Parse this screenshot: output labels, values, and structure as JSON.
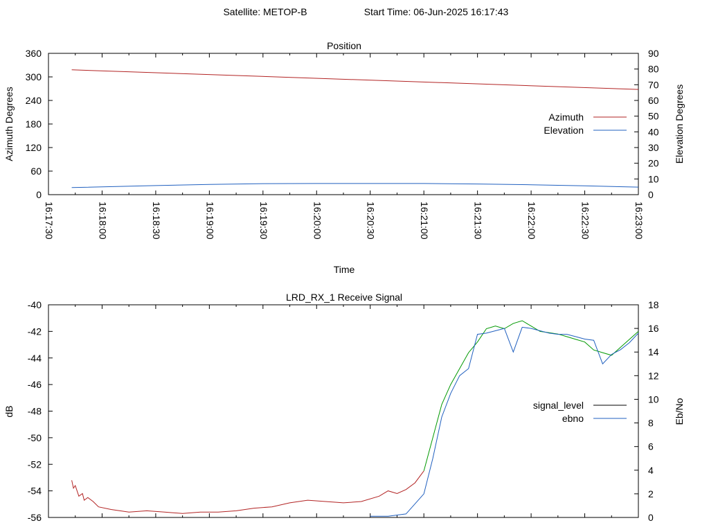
{
  "header": {
    "satellite": "Satellite: METOP-B",
    "start_time": "Start Time: 06-Jun-2025 16:17:43"
  },
  "chart_data": [
    {
      "type": "line",
      "title": "Position",
      "xlabel": "Time",
      "ylabel": "Azimuth Degrees",
      "y2label": "Elevation Degrees",
      "x_ticks": [
        "16:17:30",
        "16:18:00",
        "16:18:30",
        "16:19:00",
        "16:19:30",
        "16:20:00",
        "16:20:30",
        "16:21:00",
        "16:21:30",
        "16:22:00",
        "16:22:30",
        "16:23:00"
      ],
      "xlim": [
        "16:17:30",
        "16:23:00"
      ],
      "ylim": [
        0,
        360
      ],
      "y_ticks": [
        0,
        60,
        120,
        180,
        240,
        300,
        360
      ],
      "y2lim": [
        0,
        90
      ],
      "y2_ticks": [
        0,
        10,
        20,
        30,
        40,
        50,
        60,
        70,
        80,
        90
      ],
      "legend_position": "right",
      "series": [
        {
          "name": "Azimuth",
          "axis": "left",
          "color": "#b22222",
          "x": [
            "16:17:43",
            "16:23:00"
          ],
          "y": [
            318,
            268
          ]
        },
        {
          "name": "Elevation",
          "axis": "right",
          "color": "#1f5fbf",
          "x": [
            "16:17:43",
            "16:18:30",
            "16:19:00",
            "16:19:30",
            "16:20:00",
            "16:20:30",
            "16:21:00",
            "16:21:30",
            "16:22:00",
            "16:22:30",
            "16:23:00"
          ],
          "y": [
            4.5,
            5.8,
            6.5,
            7.0,
            7.1,
            7.1,
            7.1,
            6.8,
            6.3,
            5.6,
            4.8
          ]
        }
      ]
    },
    {
      "type": "line",
      "title": "LRD_RX_1 Receive Signal",
      "ylabel": "dB",
      "y2label": "Eb/No",
      "ylim": [
        -56,
        -40
      ],
      "y_ticks": [
        -56,
        -54,
        -52,
        -50,
        -48,
        -46,
        -44,
        -42,
        -40
      ],
      "y2lim": [
        0,
        18
      ],
      "y2_ticks": [
        0,
        2,
        4,
        6,
        8,
        10,
        12,
        14,
        16,
        18
      ],
      "legend_position": "right",
      "series": [
        {
          "name": "signal_level",
          "axis": "left",
          "color": "#000000",
          "segments": [
            {
              "color": "#b22222",
              "x": [
                "16:17:43",
                "16:17:44",
                "16:17:45",
                "16:17:47",
                "16:17:49",
                "16:17:50",
                "16:17:52",
                "16:17:55",
                "16:17:58",
                "16:18:05",
                "16:18:15",
                "16:18:25",
                "16:18:35",
                "16:18:45",
                "16:18:55",
                "16:19:05",
                "16:19:15",
                "16:19:25",
                "16:19:35",
                "16:19:45",
                "16:19:55",
                "16:20:05",
                "16:20:15",
                "16:20:25",
                "16:20:35",
                "16:20:40",
                "16:20:45",
                "16:20:50",
                "16:20:55",
                "16:21:00"
              ],
              "y": [
                -53.2,
                -53.8,
                -53.6,
                -54.4,
                -54.2,
                -54.7,
                -54.5,
                -54.8,
                -55.2,
                -55.4,
                -55.6,
                -55.5,
                -55.6,
                -55.7,
                -55.6,
                -55.6,
                -55.5,
                -55.3,
                -55.2,
                -54.9,
                -54.7,
                -54.8,
                -54.9,
                -54.8,
                -54.4,
                -54.0,
                -54.2,
                -53.9,
                -53.4,
                -52.5
              ]
            },
            {
              "color": "#009900",
              "x": [
                "16:21:00",
                "16:21:05",
                "16:21:10",
                "16:21:15",
                "16:21:20",
                "16:21:25",
                "16:21:30",
                "16:21:35",
                "16:21:40",
                "16:21:45",
                "16:21:50",
                "16:21:55",
                "16:22:00",
                "16:22:05",
                "16:22:10",
                "16:22:15",
                "16:22:20",
                "16:22:25",
                "16:22:30",
                "16:22:35",
                "16:22:40",
                "16:22:45",
                "16:22:50",
                "16:22:55",
                "16:23:00"
              ],
              "y": [
                -52.5,
                -50.0,
                -47.5,
                -46.0,
                -44.8,
                -43.6,
                -42.8,
                -41.8,
                -41.6,
                -41.8,
                -41.4,
                -41.2,
                -41.6,
                -42.0,
                -42.1,
                -42.2,
                -42.4,
                -42.6,
                -42.8,
                -43.4,
                -43.6,
                -43.8,
                -43.2,
                -42.6,
                -42.0
              ]
            }
          ]
        },
        {
          "name": "ebno",
          "axis": "right",
          "color": "#1f5fbf",
          "x": [
            "16:20:30",
            "16:20:40",
            "16:20:50",
            "16:21:00",
            "16:21:05",
            "16:21:10",
            "16:21:15",
            "16:21:20",
            "16:21:25",
            "16:21:30",
            "16:21:35",
            "16:21:40",
            "16:21:45",
            "16:21:50",
            "16:21:55",
            "16:22:00",
            "16:22:05",
            "16:22:10",
            "16:22:15",
            "16:22:20",
            "16:22:25",
            "16:22:30",
            "16:22:35",
            "16:22:40",
            "16:22:45",
            "16:22:50",
            "16:22:55",
            "16:23:00"
          ],
          "y": [
            0.1,
            0.1,
            0.3,
            2.0,
            5.0,
            8.5,
            10.5,
            12.0,
            12.6,
            15.5,
            15.6,
            15.8,
            16.0,
            14.0,
            16.1,
            16.0,
            15.8,
            15.6,
            15.5,
            15.5,
            15.3,
            15.1,
            15.0,
            13.0,
            13.8,
            14.2,
            14.8,
            15.6
          ]
        }
      ]
    }
  ]
}
